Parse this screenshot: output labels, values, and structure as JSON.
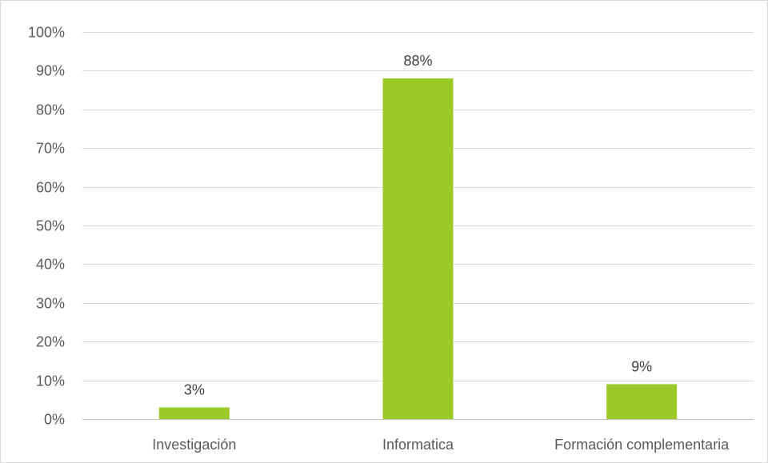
{
  "chart_data": {
    "type": "bar",
    "title": "",
    "xlabel": "",
    "ylabel": "",
    "categories": [
      "Investigación",
      "Informatica",
      "Formación complementaria"
    ],
    "values": [
      3,
      88,
      9
    ],
    "data_labels": [
      "3%",
      "88%",
      "9%"
    ],
    "ylim": [
      0,
      100
    ],
    "yticks": [
      0,
      10,
      20,
      30,
      40,
      50,
      60,
      70,
      80,
      90,
      100
    ],
    "ytick_labels": [
      "0%",
      "10%",
      "20%",
      "30%",
      "40%",
      "50%",
      "60%",
      "70%",
      "80%",
      "90%",
      "100%"
    ],
    "grid": true,
    "legend": "none",
    "bar_color": "#9ACA27"
  }
}
